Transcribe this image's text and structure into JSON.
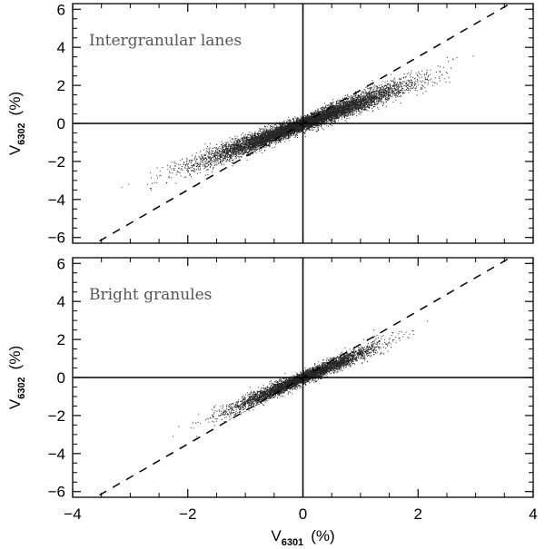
{
  "chart_data": [
    {
      "type": "scatter",
      "annotation": "Intergranular lanes",
      "xlabel": "",
      "ylabel_main": "V",
      "ylabel_sub": "6302",
      "ylabel_unit": "(%)",
      "xlim": [
        -4,
        4
      ],
      "ylim": [
        -6.3,
        6.3
      ],
      "x_ticks": [
        -4,
        -2,
        0,
        2,
        4
      ],
      "y_ticks": [
        -6,
        -4,
        -2,
        0,
        2,
        4,
        6
      ],
      "x_tick_labels": [],
      "y_tick_labels": [
        "−6",
        "−4",
        "−2",
        "0",
        "2",
        "4",
        "6"
      ],
      "reference_line_slope": 1.75,
      "point_cloud": {
        "slope": 1.12,
        "x_range": [
          -4.0,
          4.0
        ],
        "n_points": 9000,
        "spread": 0.18
      },
      "grid": false
    },
    {
      "type": "scatter",
      "annotation": "Bright granules",
      "xlabel_main": "V",
      "xlabel_sub": "6301",
      "xlabel_unit": "(%)",
      "ylabel_main": "V",
      "ylabel_sub": "6302",
      "ylabel_unit": "(%)",
      "xlim": [
        -4,
        4
      ],
      "ylim": [
        -6.3,
        6.3
      ],
      "x_ticks": [
        -4,
        -2,
        0,
        2,
        4
      ],
      "y_ticks": [
        -6,
        -4,
        -2,
        0,
        2,
        4,
        6
      ],
      "x_tick_labels": [
        "−4",
        "−2",
        "0",
        "2",
        "4"
      ],
      "y_tick_labels": [
        "−6",
        "−4",
        "−2",
        "0",
        "2",
        "4",
        "6"
      ],
      "reference_line_slope": 1.75,
      "point_cloud": {
        "slope": 1.3,
        "x_range": [
          -2.3,
          2.6
        ],
        "n_points": 5000,
        "spread": 0.15
      },
      "grid": false
    }
  ]
}
